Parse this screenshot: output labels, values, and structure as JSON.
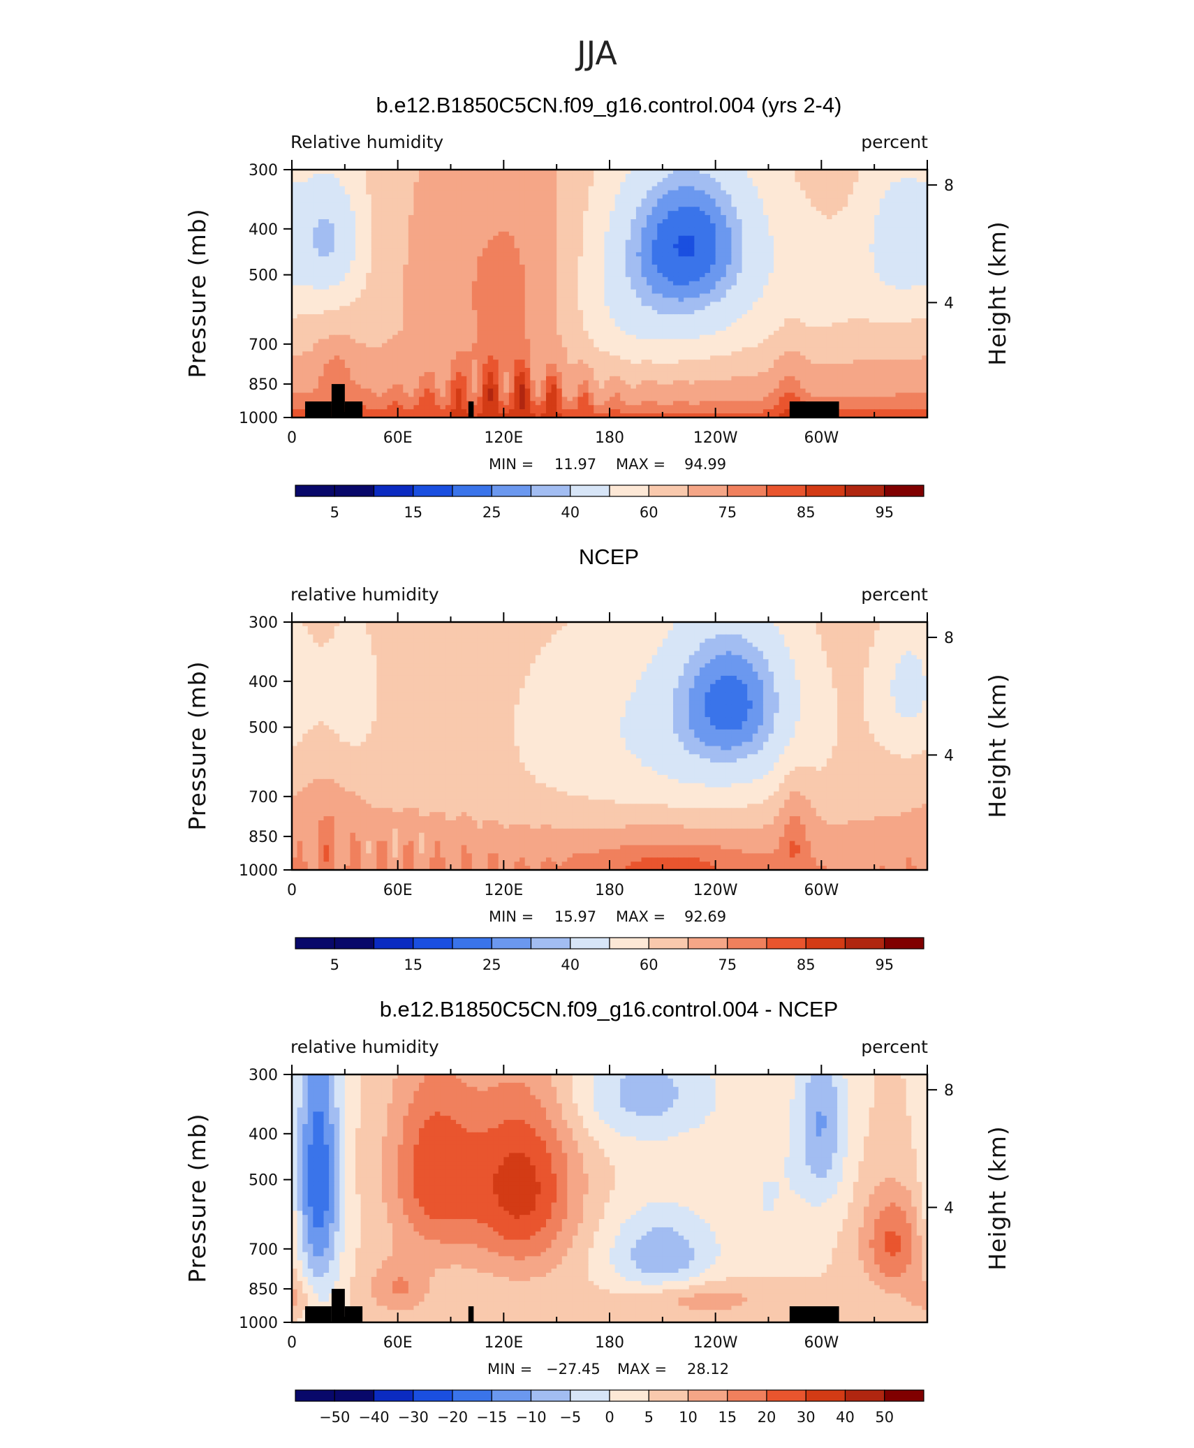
{
  "figure": {
    "super_title": "JJA"
  },
  "colors": {
    "abs_palette": [
      "#08086a",
      "#0b2bc1",
      "#1a4fe0",
      "#3a74ea",
      "#6b98ef",
      "#a2bdf2",
      "#d7e5f7",
      "#fde8d6",
      "#f9c9ad",
      "#f5a687",
      "#f0805d",
      "#e9552e",
      "#d33b15",
      "#b02610",
      "#800000"
    ],
    "diff_palette": [
      "#08086a",
      "#0b2bc1",
      "#1a4fe0",
      "#3a74ea",
      "#6b98ef",
      "#a2bdf2",
      "#d7e5f7",
      "#fde8d6",
      "#f9c9ad",
      "#f5a687",
      "#f0805d",
      "#e9552e",
      "#d33b15",
      "#b02610",
      "#800000"
    ],
    "terrain": "#000000"
  },
  "chart_data": [
    {
      "type": "heatmap",
      "title": "b.e12.B1850C5CN.f09_g16.control.004 (yrs 2-4)",
      "left_label": "Relative humidity",
      "right_label": "percent",
      "ylabel": "Pressure (mb)",
      "ylabel_right": "Height (km)",
      "x_ticks": [
        "0",
        "60E",
        "120E",
        "180",
        "120W",
        "60W"
      ],
      "x_tick_lon": [
        0,
        60,
        120,
        180,
        240,
        300
      ],
      "y_ticks": [
        "300",
        "400",
        "500",
        "700",
        "850",
        "1000"
      ],
      "y_tick_p": [
        300,
        400,
        500,
        700,
        850,
        1000
      ],
      "y_ticks_right": [
        "8",
        "4"
      ],
      "y_tick_km": [
        8,
        4
      ],
      "ylim": [
        1000,
        300
      ],
      "xlim": [
        0,
        360
      ],
      "min_text": "MIN =",
      "min_value": "11.97",
      "max_text": "MAX =",
      "max_value": "94.99",
      "colorbar_labels": [
        "5",
        "15",
        "25",
        "40",
        "60",
        "75",
        "85",
        "95"
      ],
      "field": "model",
      "terrain": true
    },
    {
      "type": "heatmap",
      "title": "NCEP",
      "left_label": "relative humidity",
      "right_label": "percent",
      "ylabel": "Pressure (mb)",
      "ylabel_right": "Height (km)",
      "x_ticks": [
        "0",
        "60E",
        "120E",
        "180",
        "120W",
        "60W"
      ],
      "x_tick_lon": [
        0,
        60,
        120,
        180,
        240,
        300
      ],
      "y_ticks": [
        "300",
        "400",
        "500",
        "700",
        "850",
        "1000"
      ],
      "y_tick_p": [
        300,
        400,
        500,
        700,
        850,
        1000
      ],
      "y_ticks_right": [
        "8",
        "4"
      ],
      "y_tick_km": [
        8,
        4
      ],
      "ylim": [
        1000,
        300
      ],
      "xlim": [
        0,
        360
      ],
      "min_text": "MIN =",
      "min_value": "15.97",
      "max_text": "MAX =",
      "max_value": "92.69",
      "colorbar_labels": [
        "5",
        "15",
        "25",
        "40",
        "60",
        "75",
        "85",
        "95"
      ],
      "field": "obs",
      "terrain": false
    },
    {
      "type": "heatmap",
      "title": "b.e12.B1850C5CN.f09_g16.control.004 - NCEP",
      "left_label": "relative humidity",
      "right_label": "percent",
      "ylabel": "Pressure (mb)",
      "ylabel_right": "Height (km)",
      "x_ticks": [
        "0",
        "60E",
        "120E",
        "180",
        "120W",
        "60W"
      ],
      "x_tick_lon": [
        0,
        60,
        120,
        180,
        240,
        300
      ],
      "y_ticks": [
        "300",
        "400",
        "500",
        "700",
        "850",
        "1000"
      ],
      "y_tick_p": [
        300,
        400,
        500,
        700,
        850,
        1000
      ],
      "y_ticks_right": [
        "8",
        "4"
      ],
      "y_tick_km": [
        8,
        4
      ],
      "ylim": [
        1000,
        300
      ],
      "xlim": [
        0,
        360
      ],
      "min_text": "MIN =",
      "min_value": "−27.45",
      "max_text": "MAX =",
      "max_value": "28.12",
      "colorbar_labels": [
        "−50",
        "−40",
        "−30",
        "−20",
        "−15",
        "−10",
        "−5",
        "0",
        "5",
        "10",
        "15",
        "20",
        "30",
        "40",
        "50"
      ],
      "field": "diff",
      "terrain": true
    }
  ]
}
